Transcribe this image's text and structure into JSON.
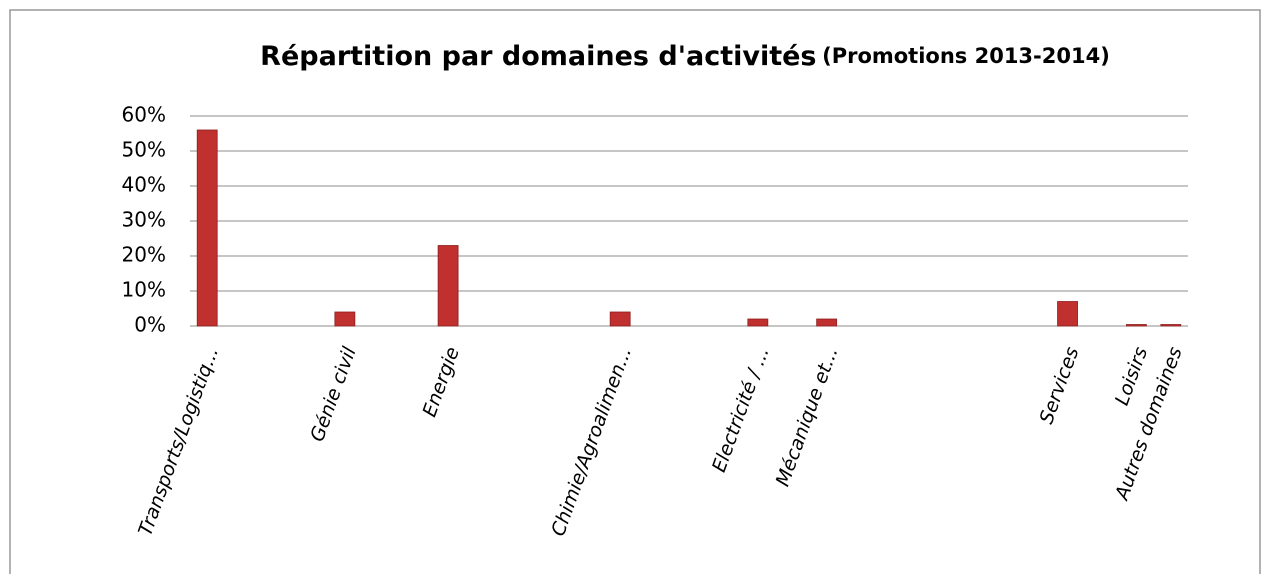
{
  "chart_data": {
    "type": "bar",
    "title": "Répartition par domaines d'activités",
    "subtitle": "(Promotions 2013-2014)",
    "categories": [
      "Transports/Logistiq...",
      null,
      null,
      null,
      "Génie civil",
      null,
      null,
      "Energie",
      null,
      null,
      null,
      null,
      "Chimie/Agroalimen...",
      null,
      null,
      null,
      "Electricité / ...",
      null,
      "Mécanique et...",
      null,
      null,
      null,
      null,
      null,
      null,
      "Services",
      null,
      "Loisirs",
      "Autres domaines"
    ],
    "values": [
      56,
      null,
      null,
      null,
      4,
      null,
      null,
      23,
      null,
      null,
      null,
      null,
      4,
      null,
      null,
      null,
      2,
      null,
      2,
      null,
      null,
      null,
      null,
      null,
      null,
      7,
      null,
      0,
      0
    ],
    "color": "#c0302f",
    "ylim": [
      0,
      60
    ],
    "yticks": [
      {
        "value": 0,
        "label": "0%"
      },
      {
        "value": 10,
        "label": "10%"
      },
      {
        "value": 20,
        "label": "20%"
      },
      {
        "value": 30,
        "label": "30%"
      },
      {
        "value": 40,
        "label": "40%"
      },
      {
        "value": 50,
        "label": "50%"
      },
      {
        "value": 60,
        "label": "60%"
      }
    ],
    "grid": true
  }
}
